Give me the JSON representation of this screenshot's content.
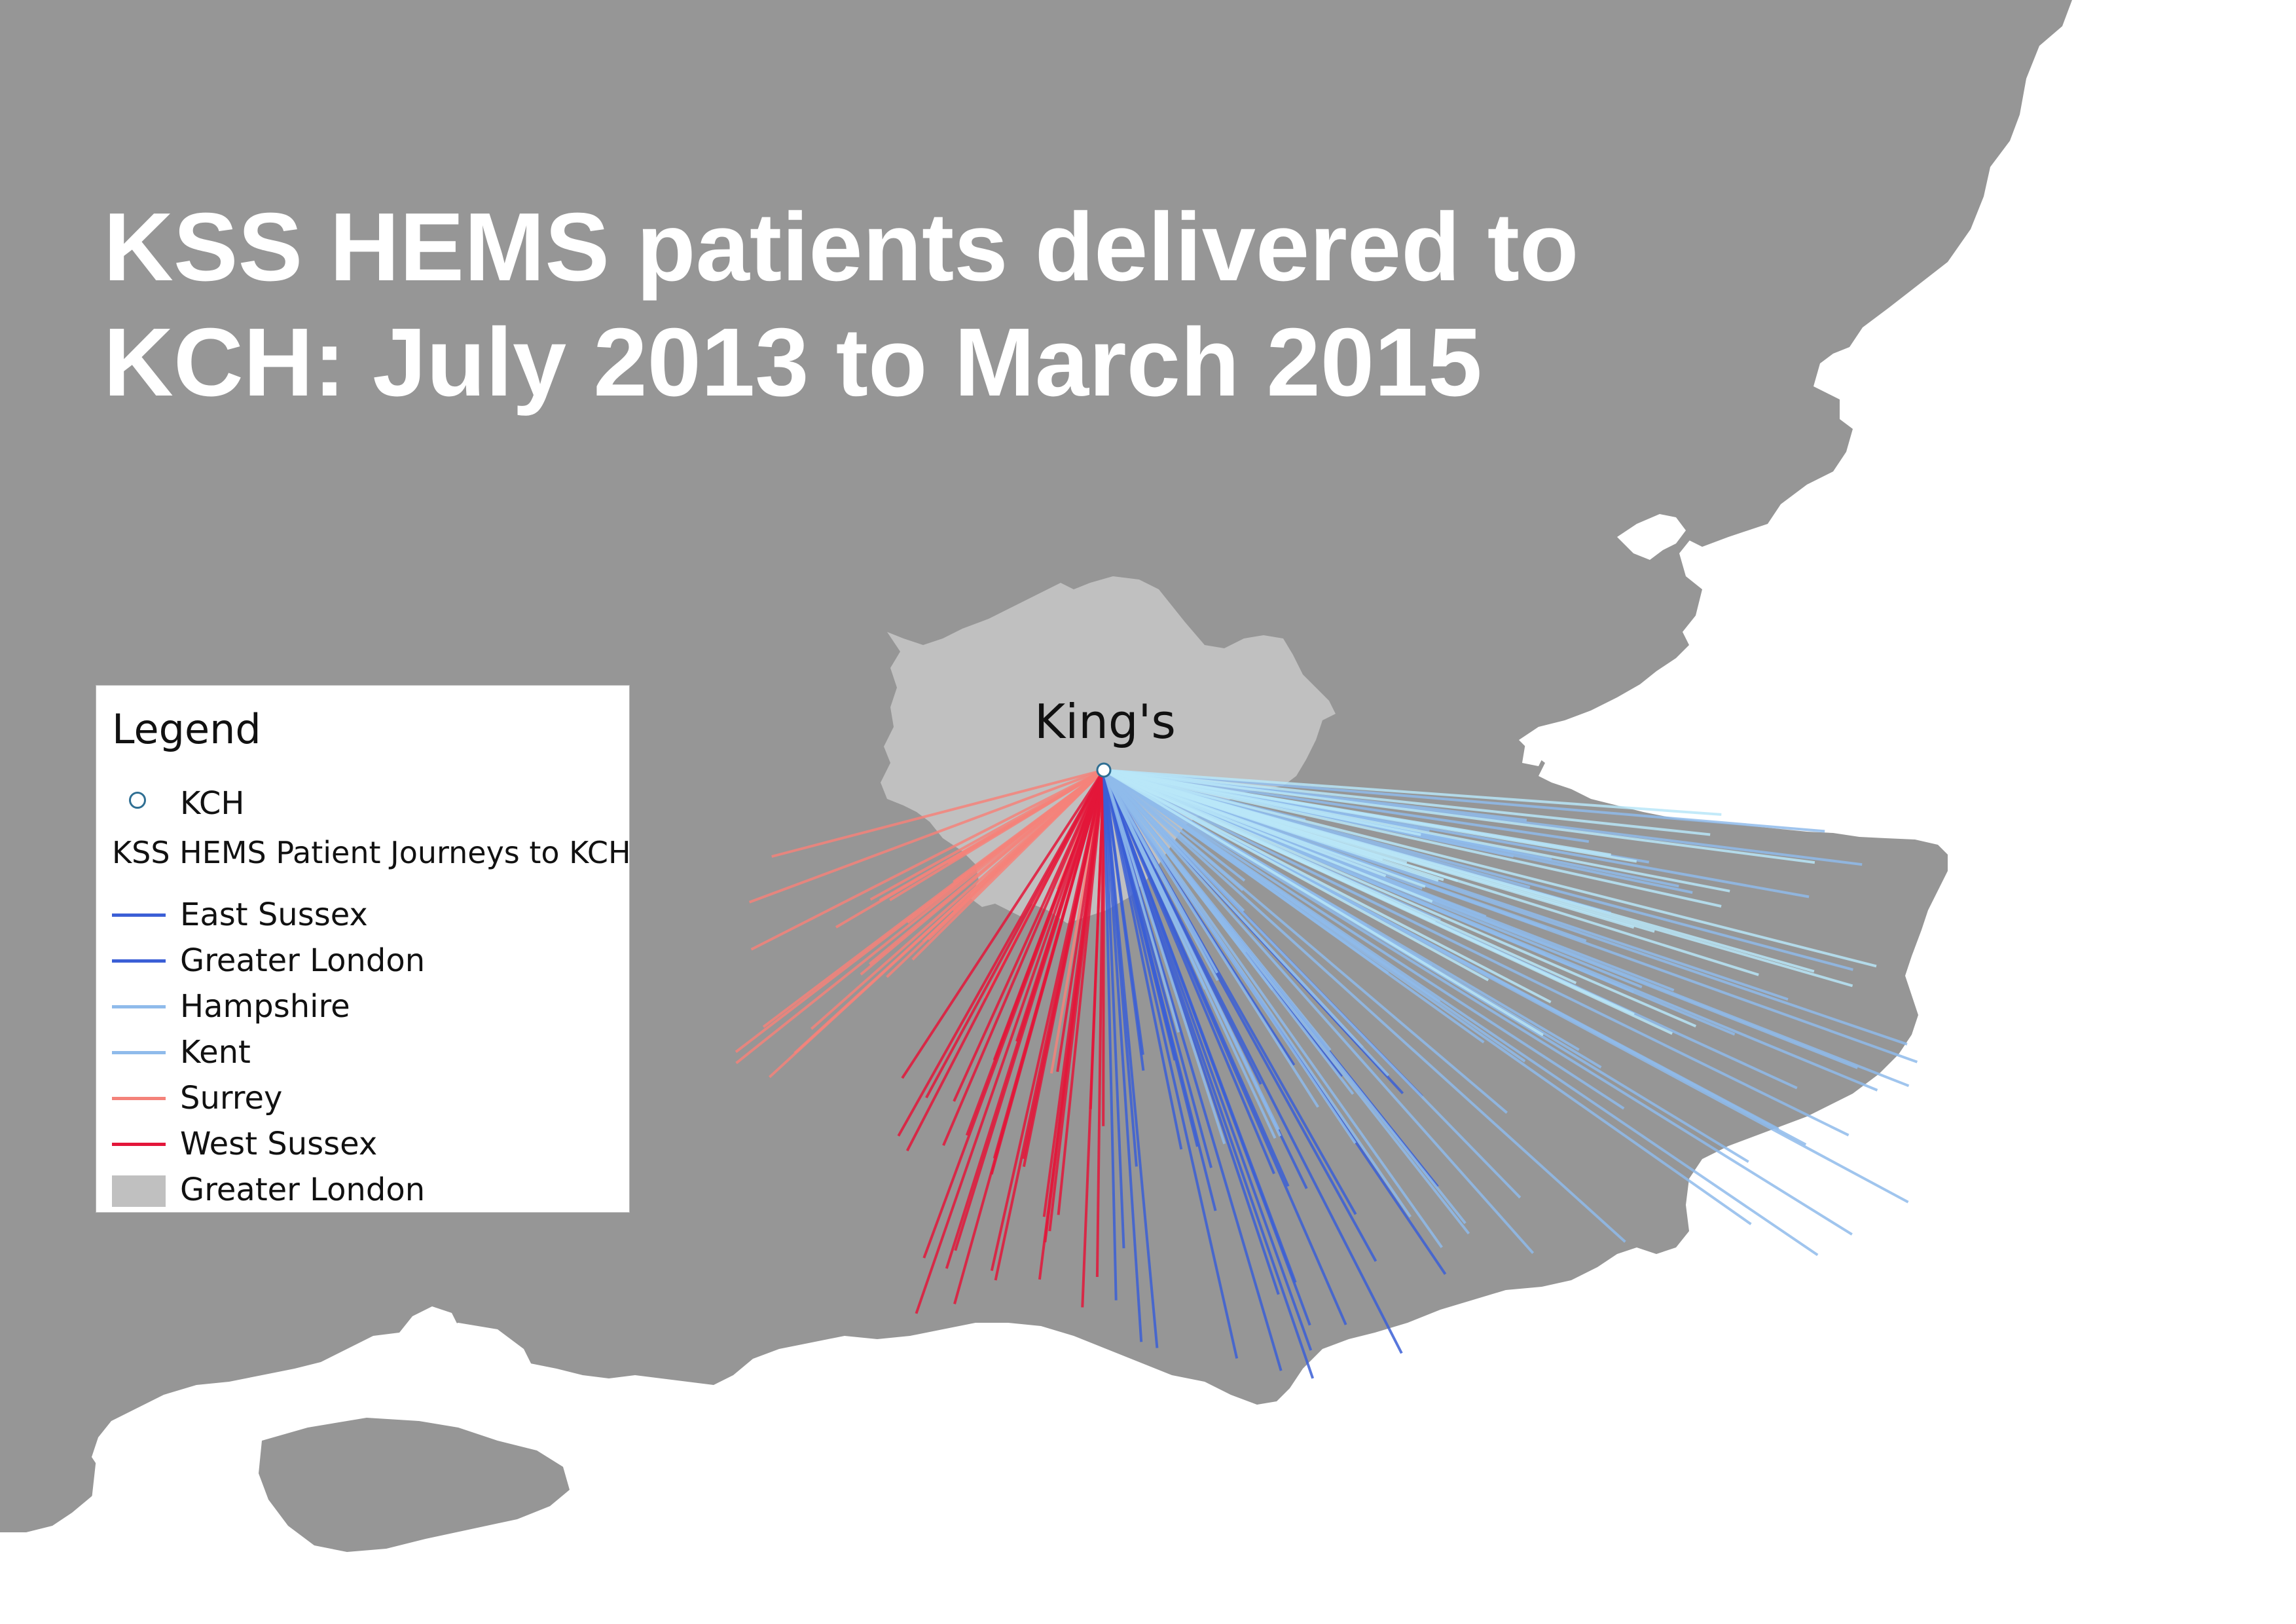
{
  "title": {
    "line1": "KSS HEMS patients delivered to",
    "line2": "KCH: July 2013 to March 2015"
  },
  "place_label": "King's",
  "legend": {
    "title": "Legend",
    "point_label": "KCH",
    "lines_heading": "KSS HEMS Patient Journeys to KCH",
    "items": [
      {
        "label": "East Sussex",
        "color": "#3b5fd6"
      },
      {
        "label": "Greater London",
        "color": "#3b5fd6"
      },
      {
        "label": "Hampshire",
        "color": "#8fbbeb"
      },
      {
        "label": "Kent",
        "color": "#8fbbeb"
      },
      {
        "label": "Surrey",
        "color": "#f4827a"
      },
      {
        "label": "West Sussex",
        "color": "#e3163a"
      }
    ],
    "area_label": "Greater London",
    "area_color": "#c0c0c0"
  },
  "colors": {
    "land": "#969696",
    "sea": "#ffffff",
    "greater_london": "#c0c0c0",
    "kch_marker": "#2f6f93"
  }
}
